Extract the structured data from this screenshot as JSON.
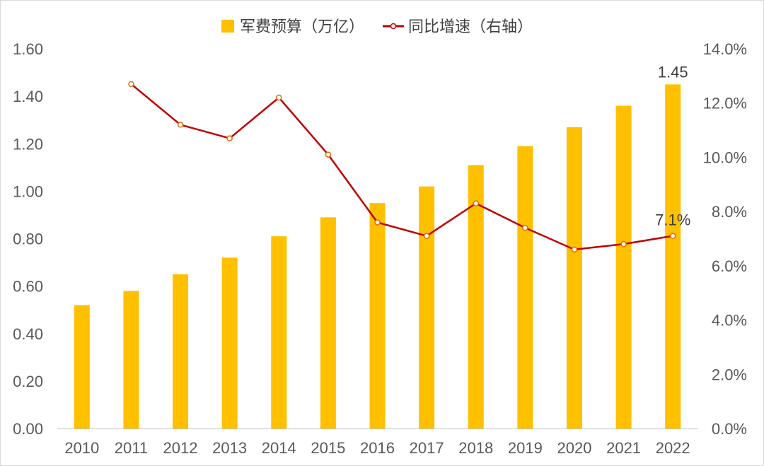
{
  "chart_data": {
    "type": "bar+line",
    "categories": [
      "2010",
      "2011",
      "2012",
      "2013",
      "2014",
      "2015",
      "2016",
      "2017",
      "2018",
      "2019",
      "2020",
      "2021",
      "2022"
    ],
    "series": [
      {
        "name": "军费预算（万亿）",
        "kind": "bar",
        "axis": "left",
        "color": "#FFC000",
        "values": [
          0.52,
          0.58,
          0.65,
          0.72,
          0.81,
          0.89,
          0.95,
          1.02,
          1.11,
          1.19,
          1.27,
          1.36,
          1.45
        ]
      },
      {
        "name": "同比增速（右轴）",
        "kind": "line",
        "axis": "right",
        "color": "#C00000",
        "values": [
          null,
          12.7,
          11.2,
          10.7,
          12.2,
          10.1,
          7.6,
          7.1,
          8.3,
          7.4,
          6.6,
          6.8,
          7.1
        ]
      }
    ],
    "left_axis": {
      "ylim": [
        0,
        1.6
      ],
      "ticks": [
        "0.00",
        "0.20",
        "0.40",
        "0.60",
        "0.80",
        "1.00",
        "1.20",
        "1.40",
        "1.60"
      ]
    },
    "right_axis": {
      "ylim": [
        0,
        14
      ],
      "ticks": [
        "0.0%",
        "2.0%",
        "4.0%",
        "6.0%",
        "8.0%",
        "10.0%",
        "12.0%",
        "14.0%"
      ]
    },
    "data_labels": {
      "bar_last": "1.45",
      "line_last": "7.1%"
    },
    "legend": {
      "position": "top"
    }
  }
}
